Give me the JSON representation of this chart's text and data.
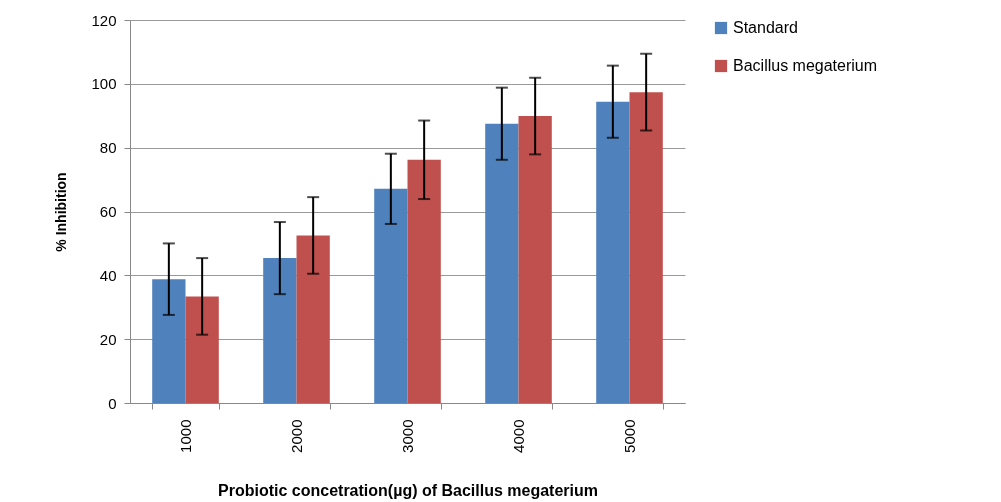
{
  "chart_data": {
    "type": "bar",
    "xlabel": "Probiotic concetration(µg)  of Bacillus  megaterium",
    "ylabel": "% Inhibition",
    "categories": [
      "1000",
      "2000",
      "3000",
      "4000",
      "5000"
    ],
    "series": [
      {
        "name": "Standard",
        "color": "#4f81bd",
        "values": [
          38.8,
          45.4,
          67.1,
          87.5,
          94.4
        ],
        "errors": [
          11.2,
          11.3,
          11,
          11.3,
          11.3
        ]
      },
      {
        "name": "Bacillus megaterium",
        "color": "#c0504d",
        "values": [
          33.4,
          52.5,
          76.2,
          89.9,
          97.4
        ],
        "errors": [
          12,
          12,
          12.3,
          12,
          12
        ]
      }
    ],
    "ylim": [
      0,
      120
    ],
    "yticks": [
      0,
      20,
      40,
      60,
      80,
      100,
      120
    ],
    "grid": "y",
    "legend": "right"
  }
}
